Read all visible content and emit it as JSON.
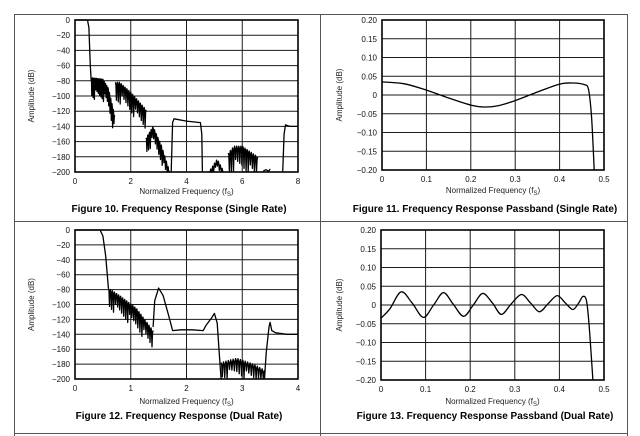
{
  "colors": {
    "grid": "#1a1a1a",
    "curve": "#000000",
    "frame": "#555555"
  },
  "chart_data": [
    {
      "type": "line",
      "title": "Figure 10. Frequency Response (Single Rate)",
      "xlabel": "Normalized Frequency",
      "xlabel_unit": "f",
      "xlabel_sub": "S",
      "ylabel": "Amplitude (dB)",
      "xlim": [
        0,
        8
      ],
      "ylim": [
        -200,
        0
      ],
      "grid": true,
      "xticks": [
        0,
        2,
        4,
        6,
        8
      ],
      "xtick_labels": [
        "0",
        "2",
        "4",
        "6",
        "8"
      ],
      "yticks": [
        0,
        -20,
        -40,
        -60,
        -80,
        -100,
        -120,
        -140,
        -160,
        -180,
        -200
      ],
      "ytick_labels": [
        "0",
        "−20",
        "−40",
        "−60",
        "−80",
        "−100",
        "−120",
        "−140",
        "−160",
        "−180",
        "−200"
      ],
      "segments": [
        {
          "kind": "line",
          "points": [
            [
              0,
              0
            ],
            [
              0.45,
              0
            ],
            [
              0.5,
              -10
            ],
            [
              0.55,
              -60
            ],
            [
              0.58,
              -80
            ]
          ]
        },
        {
          "kind": "ripple",
          "x": [
            0.58,
            1.42
          ],
          "top": [
            [
              0.58,
              -76
            ],
            [
              1.0,
              -78
            ],
            [
              1.2,
              -90
            ],
            [
              1.42,
              -125
            ]
          ],
          "depth": 30,
          "n": 18
        },
        {
          "kind": "ripple",
          "x": [
            1.45,
            2.55
          ],
          "top": [
            [
              1.45,
              -82
            ],
            [
              1.6,
              -82
            ],
            [
              2.0,
              -95
            ],
            [
              2.55,
              -118
            ]
          ],
          "depth": 30,
          "n": 16
        },
        {
          "kind": "ripple",
          "x": [
            2.55,
            3.4
          ],
          "top": [
            [
              2.55,
              -155
            ],
            [
              2.8,
              -140
            ],
            [
              3.1,
              -165
            ],
            [
              3.4,
              -200
            ]
          ],
          "depth": 25,
          "n": 14
        },
        {
          "kind": "line",
          "points": [
            [
              3.45,
              -200
            ],
            [
              3.5,
              -135
            ],
            [
              3.55,
              -130
            ],
            [
              4.0,
              -133
            ],
            [
              4.5,
              -135
            ],
            [
              4.55,
              -150
            ],
            [
              4.57,
              -200
            ]
          ]
        },
        {
          "kind": "ripple",
          "x": [
            4.8,
            5.35
          ],
          "top": [
            [
              4.8,
              -200
            ],
            [
              5.1,
              -183
            ],
            [
              5.35,
              -200
            ]
          ],
          "depth": 15,
          "n": 8
        },
        {
          "kind": "ripple",
          "x": [
            5.5,
            6.55
          ],
          "top": [
            [
              5.5,
              -175
            ],
            [
              5.7,
              -166
            ],
            [
              6.0,
              -166
            ],
            [
              6.55,
              -180
            ]
          ],
          "depth": 35,
          "n": 14
        },
        {
          "kind": "line",
          "points": [
            [
              6.75,
              -199
            ],
            [
              6.85,
              -197
            ],
            [
              6.95,
              -199
            ],
            [
              7.0,
              -196
            ]
          ]
        },
        {
          "kind": "line",
          "points": [
            [
              7.45,
              -200
            ],
            [
              7.5,
              -150
            ],
            [
              7.55,
              -138
            ],
            [
              7.7,
              -140
            ],
            [
              8.0,
              -140
            ]
          ]
        }
      ]
    },
    {
      "type": "line",
      "title": "Figure 11. Frequency Response Passband (Single Rate)",
      "xlabel": "Normalized Frequency",
      "xlabel_unit": "f",
      "xlabel_sub": "S",
      "ylabel": "Amplitude (dB)",
      "xlim": [
        0,
        0.5
      ],
      "ylim": [
        -0.2,
        0.2
      ],
      "grid": true,
      "xticks": [
        0,
        0.1,
        0.2,
        0.3,
        0.4,
        0.5
      ],
      "xtick_labels": [
        "0",
        "0.1",
        "0.2",
        "0.3",
        "0.4",
        "0.5"
      ],
      "yticks": [
        0.2,
        0.15,
        0.1,
        0.05,
        0,
        -0.05,
        -0.1,
        -0.15,
        -0.2
      ],
      "ytick_labels": [
        "0.20",
        "0.15",
        "0.10",
        "0.05",
        "0",
        "−0.05",
        "−0.10",
        "−0.15",
        "−0.20"
      ],
      "segments": [
        {
          "kind": "smooth",
          "points": [
            [
              0,
              0.035
            ],
            [
              0.05,
              0.03
            ],
            [
              0.1,
              0.013
            ],
            [
              0.15,
              -0.008
            ],
            [
              0.2,
              -0.027
            ],
            [
              0.23,
              -0.032
            ],
            [
              0.26,
              -0.029
            ],
            [
              0.3,
              -0.015
            ],
            [
              0.35,
              0.008
            ],
            [
              0.4,
              0.029
            ],
            [
              0.43,
              0.032
            ],
            [
              0.455,
              0.028
            ],
            [
              0.465,
              0.015
            ],
            [
              0.472,
              -0.06
            ],
            [
              0.478,
              -0.2
            ]
          ]
        }
      ]
    },
    {
      "type": "line",
      "title": "Figure 12. Frequency Response (Dual Rate)",
      "xlabel": "Normalized Frequency",
      "xlabel_unit": "f",
      "xlabel_sub": "S",
      "ylabel": "Amplitude (dB)",
      "xlim": [
        0,
        4
      ],
      "ylim": [
        -200,
        0
      ],
      "grid": true,
      "xticks": [
        0,
        1,
        2,
        3,
        4
      ],
      "xtick_labels": [
        "0",
        "1",
        "2",
        "3",
        "4"
      ],
      "yticks": [
        0,
        -20,
        -40,
        -60,
        -80,
        -100,
        -120,
        -140,
        -160,
        -180,
        -200
      ],
      "ytick_labels": [
        "0",
        "−20",
        "−40",
        "−60",
        "−80",
        "−100",
        "−120",
        "−140",
        "−160",
        "−180",
        "−200"
      ],
      "segments": [
        {
          "kind": "line",
          "points": [
            [
              0,
              0
            ],
            [
              0.45,
              0
            ],
            [
              0.5,
              -8
            ],
            [
              0.55,
              -35
            ],
            [
              0.6,
              -78
            ]
          ]
        },
        {
          "kind": "ripple",
          "x": [
            0.6,
            1.4
          ],
          "top": [
            [
              0.6,
              -78
            ],
            [
              0.8,
              -88
            ],
            [
              1.1,
              -105
            ],
            [
              1.4,
              -135
            ]
          ],
          "depth": 30,
          "n": 22
        },
        {
          "kind": "line",
          "points": [
            [
              1.4,
              -130
            ],
            [
              1.43,
              -95
            ],
            [
              1.5,
              -78
            ],
            [
              1.58,
              -88
            ],
            [
              1.68,
              -115
            ],
            [
              1.75,
              -135
            ],
            [
              1.9,
              -134
            ],
            [
              2.1,
              -134
            ],
            [
              2.3,
              -135
            ],
            [
              2.35,
              -128
            ],
            [
              2.45,
              -118
            ],
            [
              2.5,
              -112
            ],
            [
              2.55,
              -125
            ],
            [
              2.6,
              -180
            ],
            [
              2.62,
              -200
            ]
          ]
        },
        {
          "kind": "ripple",
          "x": [
            2.62,
            3.4
          ],
          "top": [
            [
              2.62,
              -178
            ],
            [
              2.9,
              -172
            ],
            [
              3.2,
              -180
            ],
            [
              3.4,
              -188
            ]
          ],
          "depth": 25,
          "n": 18
        },
        {
          "kind": "line",
          "points": [
            [
              3.4,
              -200
            ],
            [
              3.43,
              -165
            ],
            [
              3.48,
              -130
            ],
            [
              3.5,
              -124
            ],
            [
              3.53,
              -135
            ],
            [
              3.6,
              -138
            ],
            [
              3.8,
              -140
            ],
            [
              4.0,
              -140
            ]
          ]
        }
      ]
    },
    {
      "type": "line",
      "title": "Figure 13. Frequency Response Passband (Dual Rate)",
      "xlabel": "Normalized Frequency",
      "xlabel_unit": "f",
      "xlabel_sub": "S",
      "ylabel": "Amplitude (dB)",
      "xlim": [
        0,
        0.5
      ],
      "ylim": [
        -0.2,
        0.2
      ],
      "grid": true,
      "xticks": [
        0,
        0.1,
        0.2,
        0.3,
        0.4,
        0.5
      ],
      "xtick_labels": [
        "0",
        "0.1",
        "0.2",
        "0.3",
        "0.4",
        "0.5"
      ],
      "yticks": [
        0.2,
        0.15,
        0.1,
        0.05,
        0,
        -0.05,
        -0.1,
        -0.15,
        -0.2
      ],
      "ytick_labels": [
        "0.20",
        "0.15",
        "0.10",
        "0.05",
        "0",
        "−0.05",
        "−0.10",
        "−0.15",
        "−0.20"
      ],
      "segments": [
        {
          "kind": "smooth",
          "points": [
            [
              0,
              -0.035
            ],
            [
              0.02,
              -0.01
            ],
            [
              0.045,
              0.035
            ],
            [
              0.07,
              0.005
            ],
            [
              0.095,
              -0.033
            ],
            [
              0.118,
              0.0
            ],
            [
              0.14,
              0.033
            ],
            [
              0.162,
              0.002
            ],
            [
              0.185,
              -0.03
            ],
            [
              0.207,
              0.0
            ],
            [
              0.228,
              0.031
            ],
            [
              0.25,
              0.005
            ],
            [
              0.27,
              -0.025
            ],
            [
              0.292,
              0.003
            ],
            [
              0.315,
              0.028
            ],
            [
              0.335,
              0.006
            ],
            [
              0.355,
              -0.018
            ],
            [
              0.375,
              0.004
            ],
            [
              0.395,
              0.025
            ],
            [
              0.413,
              0.006
            ],
            [
              0.43,
              -0.012
            ],
            [
              0.443,
              0.005
            ],
            [
              0.453,
              0.023
            ],
            [
              0.461,
              0.01
            ],
            [
              0.467,
              -0.06
            ],
            [
              0.475,
              -0.2
            ]
          ]
        }
      ]
    }
  ]
}
